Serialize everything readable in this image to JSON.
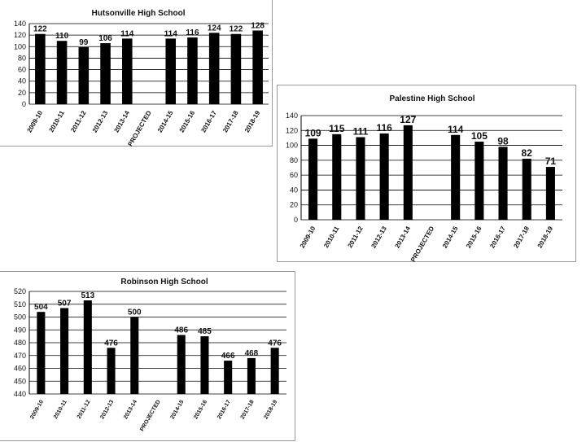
{
  "chart_data": [
    {
      "type": "bar",
      "title": "Hutsonville High School",
      "categories": [
        "2009-10",
        "2010-11",
        "2011-12",
        "2012-13",
        "2013-14",
        "PROJECTED",
        "2014-15",
        "2015-16",
        "2016-17",
        "2017-18",
        "2018-19"
      ],
      "values": [
        122,
        110,
        99,
        106,
        114,
        null,
        114,
        116,
        124,
        122,
        128
      ],
      "ylim": [
        0,
        140
      ],
      "yticks": [
        0,
        20,
        40,
        60,
        80,
        100,
        120,
        140
      ],
      "grid": true,
      "bar_color": "#000000",
      "xlabel": "",
      "ylabel": ""
    },
    {
      "type": "bar",
      "title": "Palestine High School",
      "categories": [
        "2009-10",
        "2010-11",
        "2011-12",
        "2012-13",
        "2013-14",
        "PROJECTED",
        "2014-15",
        "2015-16",
        "2016-17",
        "2017-18",
        "2018-19"
      ],
      "values": [
        109,
        115,
        111,
        116,
        127,
        null,
        114,
        105,
        98,
        82,
        71
      ],
      "ylim": [
        0,
        140
      ],
      "yticks": [
        0,
        20,
        40,
        60,
        80,
        100,
        120,
        140
      ],
      "grid": true,
      "bar_color": "#000000",
      "xlabel": "",
      "ylabel": ""
    },
    {
      "type": "bar",
      "title": "Robinson High School",
      "categories": [
        "2009-10",
        "2010-11",
        "2011-12",
        "2012-13",
        "2013-14",
        "PROJECTED",
        "2014-15",
        "2015-16",
        "2016-17",
        "2017-18",
        "2018-19"
      ],
      "values": [
        504,
        507,
        513,
        476,
        500,
        null,
        486,
        485,
        466,
        468,
        476
      ],
      "ylim": [
        440,
        520
      ],
      "yticks": [
        440,
        450,
        460,
        470,
        480,
        490,
        500,
        510,
        520
      ],
      "grid": true,
      "bar_color": "#000000",
      "xlabel": "",
      "ylabel": ""
    }
  ]
}
